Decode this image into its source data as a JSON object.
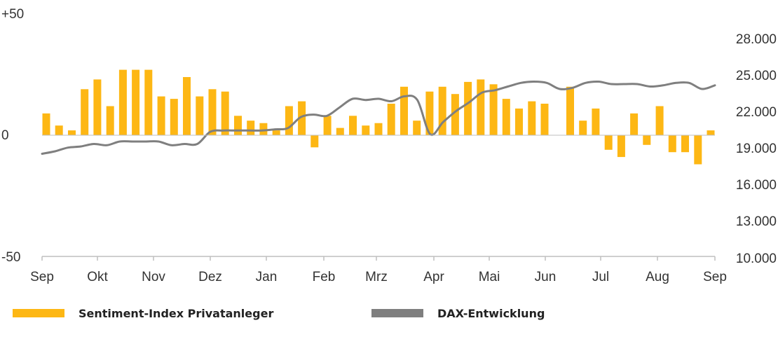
{
  "chart_data": {
    "type": "bar",
    "x_ticks": [
      "Sep",
      "Okt",
      "Nov",
      "Dez",
      "Jan",
      "Feb",
      "Mrz",
      "Apr",
      "Mai",
      "Jun",
      "Jul",
      "Aug",
      "Sep"
    ],
    "y_left_ticks": [
      "+50",
      "0",
      "-50"
    ],
    "y_left_range": [
      -50,
      50
    ],
    "y_right_ticks": [
      "28.000",
      "25.000",
      "22.000",
      "19.000",
      "16.000",
      "13.000",
      "10.000"
    ],
    "y_right_range": [
      10000,
      28000
    ],
    "grid": false,
    "legend_position": "bottom",
    "colors": {
      "bars": "#FDB714",
      "line": "#7F7F7F",
      "axis": "#BFBFBF"
    },
    "series": [
      {
        "name": "Sentiment-Index Privatanleger",
        "type": "bar",
        "axis": "left",
        "values": [
          9,
          4,
          2,
          19,
          23,
          12,
          27,
          27,
          27,
          16,
          15,
          24,
          16,
          19,
          18,
          8,
          6,
          5,
          2,
          12,
          14,
          -5,
          8,
          3,
          8,
          4,
          5,
          13,
          20,
          6,
          18,
          20,
          17,
          22,
          23,
          21,
          15,
          11,
          14,
          13,
          null,
          20,
          6,
          11,
          -6,
          -9,
          9,
          -4,
          12,
          -7,
          -7,
          -12,
          2
        ]
      },
      {
        "name": "DAX-Entwicklung",
        "type": "line",
        "axis": "right",
        "values": [
          18400,
          18600,
          18900,
          19000,
          19200,
          19100,
          19400,
          19400,
          19400,
          19400,
          19100,
          19200,
          19200,
          20200,
          20300,
          20300,
          20300,
          20300,
          20400,
          20500,
          21400,
          21600,
          21500,
          22200,
          22900,
          22800,
          22900,
          22700,
          23100,
          22800,
          20000,
          21000,
          21900,
          22600,
          23400,
          23600,
          23900,
          24200,
          24300,
          24200,
          23700,
          23800,
          24200,
          24300,
          24100,
          24100,
          24100,
          23900,
          24000,
          24200,
          24200,
          23700,
          24000
        ]
      }
    ]
  }
}
